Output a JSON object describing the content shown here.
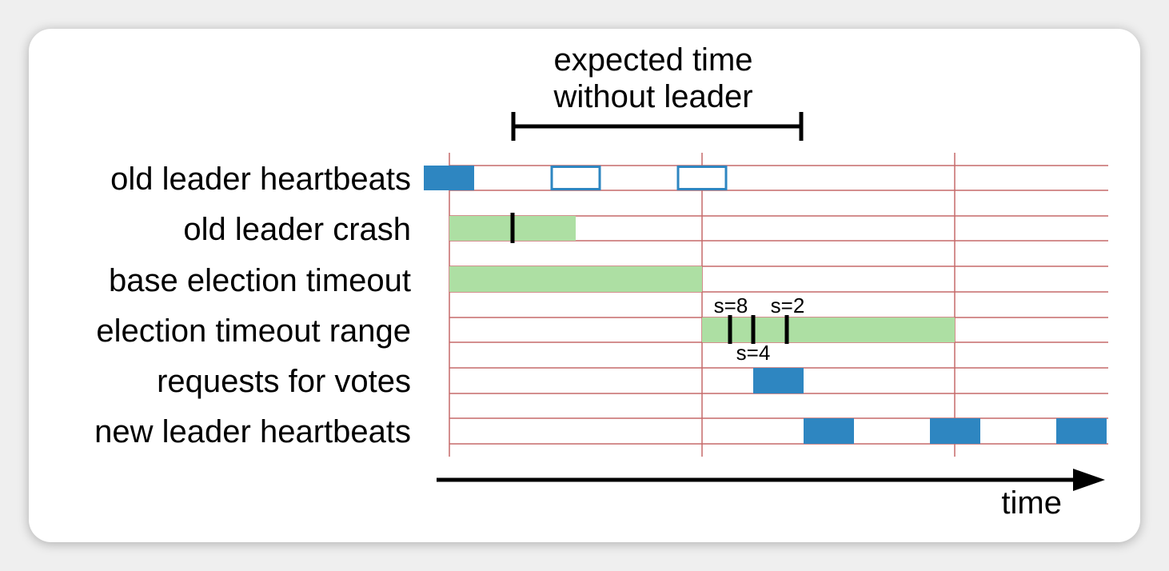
{
  "caption": {
    "line1": "expected time",
    "line2": "without leader"
  },
  "rows": [
    {
      "label": "old leader heartbeats"
    },
    {
      "label": "old leader crash"
    },
    {
      "label": "base election timeout"
    },
    {
      "label": "election timeout range"
    },
    {
      "label": "requests for votes"
    },
    {
      "label": "new leader heartbeats"
    }
  ],
  "samples": [
    {
      "label": "s=8"
    },
    {
      "label": "s=4"
    },
    {
      "label": "s=2"
    }
  ],
  "axis": {
    "label": "time"
  },
  "colors": {
    "solid_block": "#2e86c1",
    "hollow_block_stroke": "#2e86c1",
    "green_bar": "#addfa3",
    "grid_line": "#c56a6a",
    "ink": "#000000"
  }
}
